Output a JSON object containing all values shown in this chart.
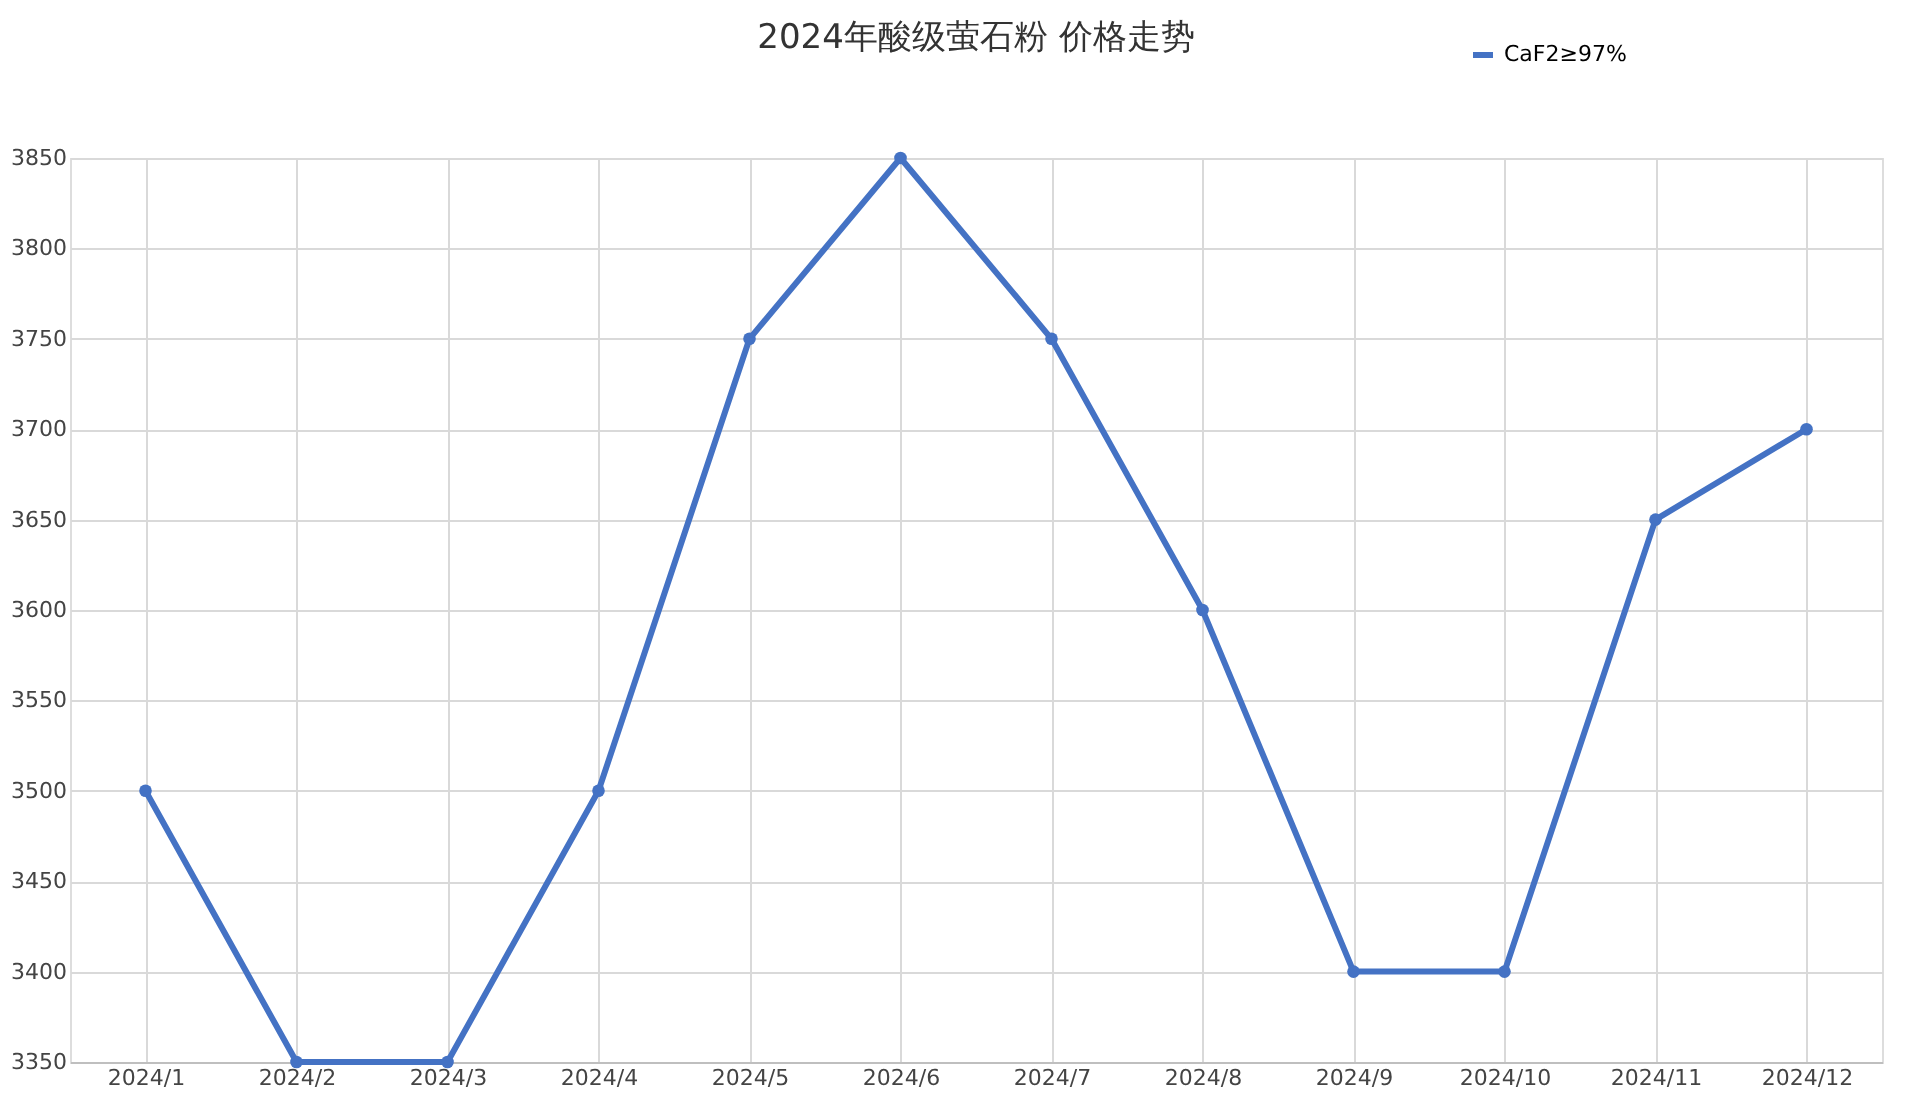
{
  "chart_data": {
    "type": "line",
    "title": "2024年酸级萤石粉 价格走势",
    "categories": [
      "2024/1",
      "2024/2",
      "2024/3",
      "2024/4",
      "2024/5",
      "2024/6",
      "2024/7",
      "2024/8",
      "2024/9",
      "2024/10",
      "2024/11",
      "2024/12"
    ],
    "series": [
      {
        "name": "CaF2≥97%",
        "color": "#4472c4",
        "values": [
          3500,
          3350,
          3350,
          3500,
          3750,
          3850,
          3750,
          3600,
          3400,
          3400,
          3650,
          3700
        ]
      }
    ],
    "ylim": [
      3350,
      3850
    ],
    "yticks": [
      3350,
      3400,
      3450,
      3500,
      3550,
      3600,
      3650,
      3700,
      3750,
      3800,
      3850
    ],
    "grid": true,
    "legend": "top right",
    "marker": "circle",
    "line_style": "solid"
  }
}
